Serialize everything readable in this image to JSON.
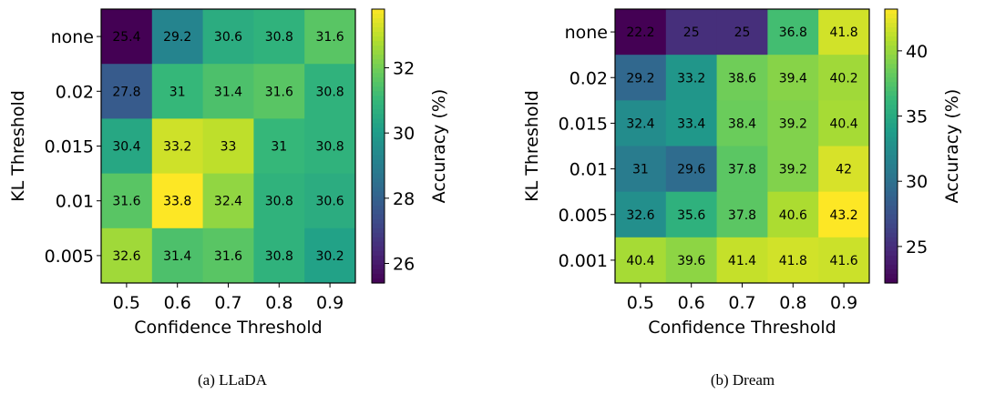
{
  "chart_data": [
    {
      "type": "heatmap",
      "caption": "(a) LLaDA",
      "xlabel": "Confidence Threshold",
      "ylabel": "KL Threshold",
      "x_categories": [
        "0.5",
        "0.6",
        "0.7",
        "0.8",
        "0.9"
      ],
      "y_categories": [
        "none",
        "0.02",
        "0.015",
        "0.01",
        "0.005"
      ],
      "values": [
        [
          25.4,
          29.2,
          30.6,
          30.8,
          31.6
        ],
        [
          27.8,
          31.0,
          31.4,
          31.6,
          30.8
        ],
        [
          30.4,
          33.2,
          33.0,
          31.0,
          30.8
        ],
        [
          31.6,
          33.8,
          32.4,
          30.8,
          30.6
        ],
        [
          32.6,
          31.4,
          31.6,
          30.8,
          30.2
        ]
      ],
      "colormap": "viridis",
      "colorbar": {
        "label": "Accuracy (%)",
        "range": [
          25.4,
          33.8
        ],
        "ticks": [
          26,
          28,
          30,
          32
        ]
      }
    },
    {
      "type": "heatmap",
      "caption": "(b) Dream",
      "xlabel": "Confidence Threshold",
      "ylabel": "KL Threshold",
      "x_categories": [
        "0.5",
        "0.6",
        "0.7",
        "0.8",
        "0.9"
      ],
      "y_categories": [
        "none",
        "0.02",
        "0.015",
        "0.01",
        "0.005",
        "0.001"
      ],
      "values": [
        [
          22.2,
          25.0,
          25.0,
          36.8,
          41.8
        ],
        [
          29.2,
          33.2,
          38.6,
          39.4,
          40.2
        ],
        [
          32.4,
          33.4,
          38.4,
          39.2,
          40.4
        ],
        [
          31.0,
          29.6,
          37.8,
          39.2,
          42.0
        ],
        [
          32.6,
          35.6,
          37.8,
          40.6,
          43.2
        ],
        [
          40.4,
          39.6,
          41.4,
          41.8,
          41.6
        ]
      ],
      "colormap": "viridis",
      "colorbar": {
        "label": "Accuracy (%)",
        "range": [
          22.2,
          43.2
        ],
        "ticks": [
          25,
          30,
          35,
          40
        ]
      }
    }
  ]
}
